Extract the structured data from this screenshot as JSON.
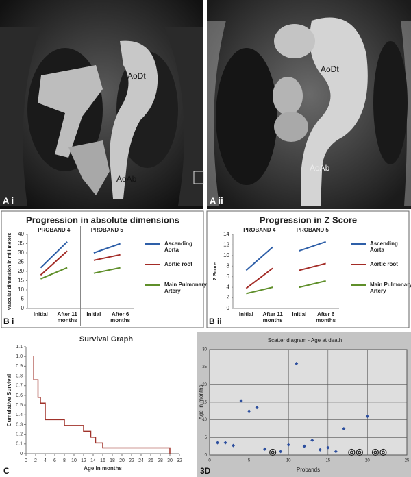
{
  "images": [
    {
      "panel": "A i",
      "labels": [
        "AoDt",
        "AoAb"
      ]
    },
    {
      "panel": "A ii",
      "labels": [
        "AoDt",
        "AoAb"
      ]
    }
  ],
  "chart_data": [
    {
      "type": "grouped-line",
      "panel": "B i",
      "title": "Progression in absolute dimensions",
      "ylabel": "Vascular dimension in millimeters",
      "groups": [
        "PROBAND 4",
        "PROBAND 5"
      ],
      "categories": [
        "Initial",
        "After 11 months",
        "Initial",
        "After 6 months"
      ],
      "series": [
        {
          "name": "Ascending Aorta",
          "color": "#2e5fa8",
          "values": [
            22,
            36,
            30,
            35
          ]
        },
        {
          "name": "Aortic root",
          "color": "#a32b26",
          "values": [
            18,
            31,
            26,
            29
          ]
        },
        {
          "name": "Main Pulmonary Artery",
          "color": "#5f8f2a",
          "values": [
            16,
            22,
            19,
            22
          ]
        }
      ],
      "ylim": [
        0,
        40
      ],
      "yticks": [
        0,
        5,
        10,
        15,
        20,
        25,
        30,
        35,
        40
      ]
    },
    {
      "type": "grouped-line",
      "panel": "B ii",
      "title": "Progression in Z Score",
      "ylabel": "Z Score",
      "groups": [
        "PROBAND 4",
        "PROBAND 5"
      ],
      "categories": [
        "Initial",
        "After 11 months",
        "Initial",
        "After 6 months"
      ],
      "series": [
        {
          "name": "Ascending Aorta",
          "color": "#2e5fa8",
          "values": [
            7.2,
            11.6,
            10.9,
            12.6
          ]
        },
        {
          "name": "Aortic root",
          "color": "#a32b26",
          "values": [
            3.8,
            7.6,
            7.2,
            8.5
          ]
        },
        {
          "name": "Main Pulmonary Artery",
          "color": "#5f8f2a",
          "values": [
            2.8,
            4.0,
            4.0,
            5.2
          ]
        }
      ],
      "ylim": [
        0,
        14
      ],
      "yticks": [
        0,
        2,
        4,
        6,
        8,
        10,
        12,
        14
      ]
    },
    {
      "type": "step",
      "panel": "C",
      "title": "Survival Graph",
      "xlabel": "Age in months",
      "ylabel": "Cumulative Survival",
      "color": "#a0322a",
      "x": [
        1.5,
        1.6,
        2.5,
        3,
        4,
        8,
        12,
        13.5,
        14.5,
        16,
        30
      ],
      "values": [
        1.0,
        0.76,
        0.58,
        0.52,
        0.35,
        0.29,
        0.23,
        0.17,
        0.11,
        0.06,
        0
      ],
      "xlim": [
        0,
        32
      ],
      "xticks": [
        0,
        2,
        4,
        6,
        8,
        10,
        12,
        14,
        16,
        18,
        20,
        22,
        24,
        26,
        28,
        30,
        32
      ],
      "ylim": [
        0,
        1.1
      ],
      "yticks": [
        0,
        0.1,
        0.2,
        0.3,
        0.4,
        0.5,
        0.6,
        0.7,
        0.8,
        0.9,
        {
          "value": 1,
          "label": "1.0"
        },
        1.1
      ]
    },
    {
      "type": "scatter",
      "panel": "3D",
      "title": "Scatter diagram - Age at death",
      "xlabel": "Probands",
      "ylabel": "Age in months",
      "grid": true,
      "series": [
        {
          "marker": "dot",
          "color": "#2d4f9e",
          "x": [
            1,
            2,
            3,
            4,
            5,
            6,
            7,
            9,
            10,
            11,
            12,
            13,
            14,
            15,
            16,
            17,
            20
          ],
          "values": [
            3.5,
            3.5,
            2.7,
            15.4,
            12.5,
            13.5,
            1.7,
            1,
            2.9,
            26,
            2.5,
            4.2,
            1.5,
            2.1,
            1,
            7.5,
            11
          ]
        },
        {
          "marker": "ring",
          "color": "#222222",
          "x": [
            8,
            18,
            19,
            21,
            22
          ],
          "values": [
            0,
            0,
            0,
            0,
            0
          ]
        }
      ],
      "xlim": [
        0,
        25
      ],
      "xticks": [
        0,
        5,
        10,
        15,
        20,
        25
      ],
      "ylim": [
        0,
        30
      ],
      "yticks": [
        0,
        5,
        10,
        15,
        20,
        25,
        30
      ]
    }
  ]
}
